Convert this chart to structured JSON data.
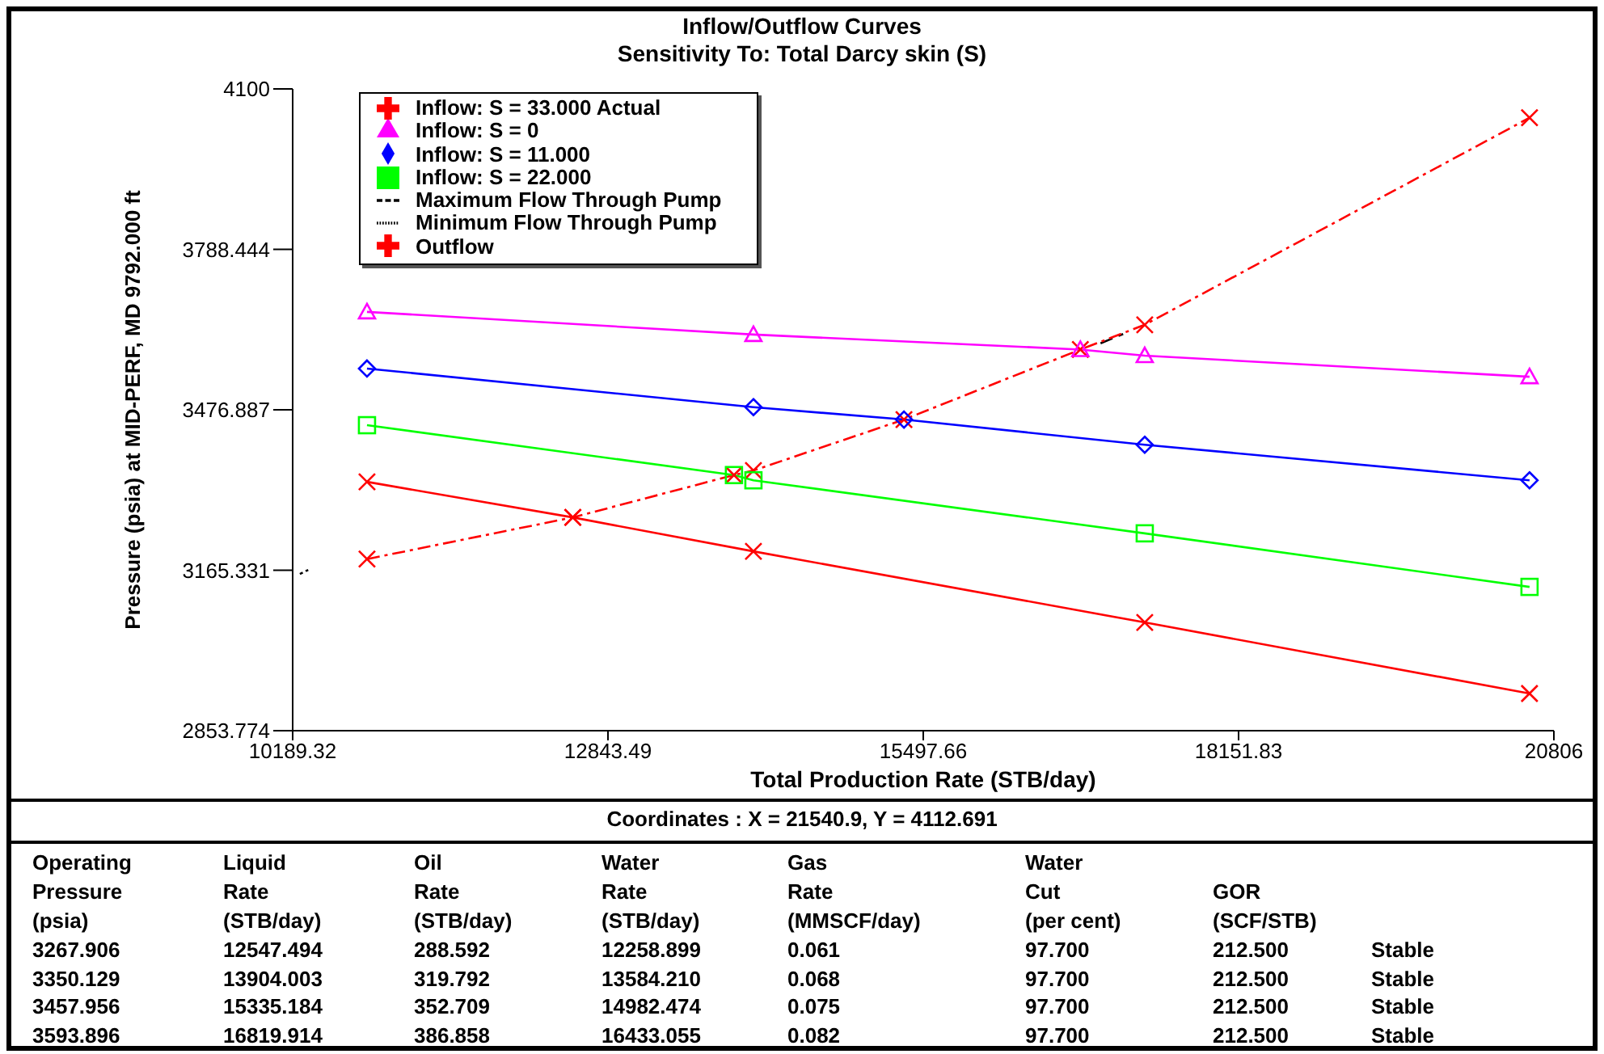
{
  "chart_data": {
    "type": "line",
    "title": "Inflow/Outflow Curves",
    "subtitle": "Sensitivity To: Total Darcy skin (S)",
    "xlabel": "Total Production Rate (STB/day)",
    "ylabel": "Pressure (psia) at MID-PERF, MD 9792.000 ft",
    "xlim": [
      10189.32,
      20806
    ],
    "xticks": [
      10189.32,
      12843.49,
      15497.66,
      18151.83,
      20806
    ],
    "ylim": [
      2853.774,
      4100
    ],
    "yticks": [
      2853.774,
      3165.331,
      3476.887,
      3788.444,
      4100
    ],
    "grid": false,
    "legend": "top left",
    "series": [
      {
        "name": "Minimum Flow Through Pump",
        "color": "#000000",
        "line_style": "dotted",
        "marker": "none",
        "x": [
          10250,
          10320
        ],
        "values": [
          3158,
          3166
        ]
      },
      {
        "name": "Maximum Flow Through Pump",
        "color": "#000000",
        "line_style": "dashed",
        "marker": "none",
        "x": [
          16990,
          17180
        ],
        "values": [
          3606,
          3624
        ]
      },
      {
        "name": "Inflow:  S = 33.000 Actual",
        "color": "#ff0000",
        "line_style": "solid",
        "marker": "cross",
        "x": [
          10815,
          12547.494,
          14068,
          17362,
          20601
        ],
        "values": [
          3337,
          3267.906,
          3202,
          3064,
          2926
        ]
      },
      {
        "name": "Outflow",
        "color": "#ff0000",
        "line_style": "dashed",
        "marker": "cross",
        "x": [
          10815,
          12547.494,
          13904.003,
          14068,
          15335.184,
          16819.914,
          17362,
          20601
        ],
        "values": [
          3187,
          3267.906,
          3350.129,
          3359,
          3457.956,
          3593.896,
          3642,
          4044
        ]
      },
      {
        "name": "Inflow: S = 22.000",
        "color": "#00ff00",
        "line_style": "solid",
        "marker": "square",
        "x": [
          10815,
          13904.003,
          14068,
          17362,
          20601
        ],
        "values": [
          3447,
          3350.129,
          3340,
          3237,
          3133
        ]
      },
      {
        "name": "Inflow: S = 11.000",
        "color": "#0000ff",
        "line_style": "solid",
        "marker": "diamond",
        "x": [
          10815,
          14068,
          15335.184,
          17362,
          20601
        ],
        "values": [
          3557,
          3482,
          3457.956,
          3409,
          3340
        ]
      },
      {
        "name": "Inflow: S = 0",
        "color": "#ff00ff",
        "line_style": "solid",
        "marker": "triangle",
        "x": [
          10815,
          14068,
          16819.914,
          17362,
          20601
        ],
        "values": [
          3667,
          3623,
          3593.896,
          3582,
          3541
        ]
      }
    ],
    "annotations": [
      "Coordinates :  X = 21540.9,  Y = 4112.691",
      "Operating\nPressure\n(psia)",
      "Liquid\nRate\n(STB/day)",
      "Oil\nRate\n(STB/day)",
      "Water\nRate\n(STB/day)",
      "Gas\nRate\n(MMSCF/day)",
      "Water\nCut\n(per cent)",
      "GOR\n(SCF/STB)",
      "3267.906",
      "12547.494",
      "288.592",
      "12258.899",
      "0.061",
      "97.700",
      "212.500",
      "Stable",
      "3350.129",
      "13904.003",
      "319.792",
      "13584.210",
      "0.068",
      "97.700",
      "212.500",
      "Stable",
      "3457.956",
      "15335.184",
      "352.709",
      "14982.474",
      "0.075",
      "97.700",
      "212.500",
      "Stable",
      "3593.896",
      "16819.914",
      "386.858",
      "16433.055",
      "0.082",
      "97.700",
      "212.500",
      "Stable"
    ]
  }
}
